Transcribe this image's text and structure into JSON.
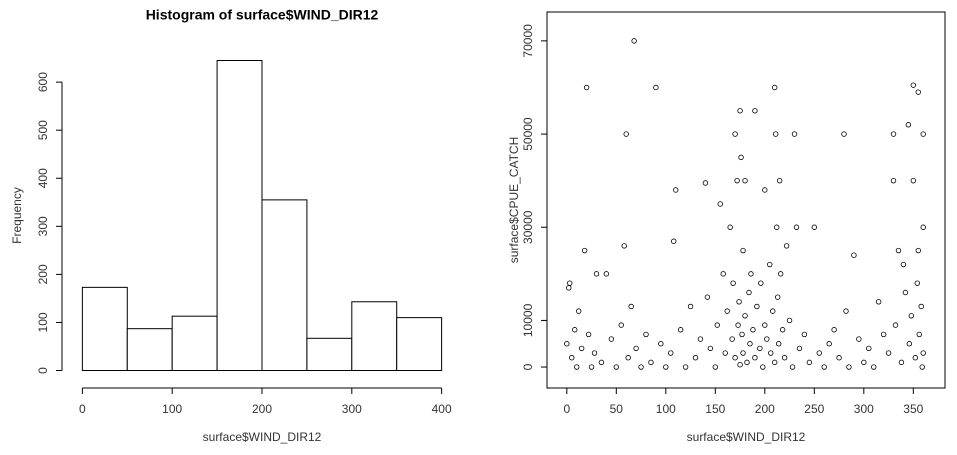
{
  "chart_data": [
    {
      "type": "histogram",
      "title": "Histogram of surface$WIND_DIR12",
      "x_label": "surface$WIND_DIR12",
      "y_label": "Frequency",
      "bins": [
        0,
        50,
        100,
        150,
        200,
        250,
        300,
        350,
        400
      ],
      "values": [
        173,
        87,
        113,
        645,
        355,
        67,
        143,
        110
      ],
      "color": "#ffffff",
      "xlim": [
        -16,
        416
      ],
      "ylim": [
        -26,
        671
      ],
      "xticks": [
        0,
        100,
        200,
        300,
        400
      ],
      "yticks": [
        0,
        100,
        200,
        300,
        400,
        500,
        600
      ]
    },
    {
      "type": "scatter",
      "x_label": "surface$WIND_DIR12",
      "y_label": "surface$CPUE_CATCH",
      "x": [
        0,
        2,
        3,
        5,
        8,
        10,
        12,
        15,
        18,
        20,
        22,
        25,
        28,
        30,
        35,
        40,
        45,
        50,
        55,
        58,
        60,
        62,
        65,
        68,
        70,
        75,
        80,
        85,
        90,
        95,
        100,
        105,
        108,
        110,
        115,
        120,
        125,
        130,
        135,
        140,
        142,
        145,
        150,
        152,
        155,
        158,
        160,
        162,
        165,
        167,
        168,
        170,
        170,
        172,
        173,
        174,
        175,
        175,
        176,
        177,
        178,
        178,
        180,
        180,
        182,
        184,
        185,
        186,
        188,
        190,
        190,
        192,
        195,
        196,
        198,
        200,
        200,
        202,
        205,
        206,
        208,
        210,
        210,
        211,
        212,
        213,
        214,
        215,
        216,
        218,
        220,
        222,
        225,
        228,
        230,
        232,
        235,
        240,
        245,
        250,
        255,
        260,
        265,
        270,
        275,
        280,
        282,
        285,
        290,
        295,
        300,
        305,
        310,
        315,
        320,
        325,
        330,
        330,
        332,
        335,
        338,
        340,
        342,
        345,
        346,
        348,
        350,
        350,
        352,
        354,
        355,
        355,
        356,
        358,
        360,
        360,
        360,
        359
      ],
      "y": [
        5000,
        17000,
        18000,
        2000,
        8000,
        0,
        12000,
        4000,
        25000,
        60000,
        7000,
        0,
        3000,
        20000,
        1000,
        20000,
        6000,
        0,
        9000,
        26000,
        50000,
        2000,
        13000,
        70000,
        4000,
        0,
        7000,
        1000,
        60000,
        5000,
        0,
        3000,
        27000,
        38000,
        8000,
        0,
        13000,
        2000,
        6000,
        39500,
        15000,
        4000,
        0,
        9000,
        35000,
        20000,
        3000,
        12000,
        30000,
        6000,
        18000,
        50000,
        2000,
        40000,
        9000,
        14000,
        55000,
        500,
        45000,
        7000,
        25000,
        3000,
        40000,
        11000,
        1000,
        16000,
        5000,
        20000,
        8000,
        55000,
        2000,
        13000,
        4000,
        18000,
        0,
        38000,
        9000,
        6000,
        22000,
        3000,
        12000,
        60000,
        1000,
        50000,
        30000,
        15000,
        5000,
        40000,
        20000,
        8000,
        2000,
        26000,
        10000,
        0,
        50000,
        30000,
        4000,
        7000,
        1000,
        30000,
        3000,
        0,
        5000,
        8000,
        2000,
        50000,
        12000,
        0,
        24000,
        6000,
        1000,
        4000,
        0,
        14000,
        7000,
        3000,
        50000,
        40000,
        9000,
        25000,
        1000,
        22000,
        16000,
        52000,
        5000,
        11000,
        60500,
        40000,
        2000,
        18000,
        59000,
        25000,
        7000,
        13000,
        50000,
        30000,
        3000,
        0
      ],
      "color": "#000000",
      "xlim": [
        -20,
        382
      ],
      "ylim": [
        -4500,
        76200
      ],
      "xticks": [
        0,
        50,
        100,
        150,
        200,
        250,
        300,
        350
      ],
      "yticks": [
        0,
        10000,
        30000,
        50000,
        70000
      ]
    }
  ]
}
